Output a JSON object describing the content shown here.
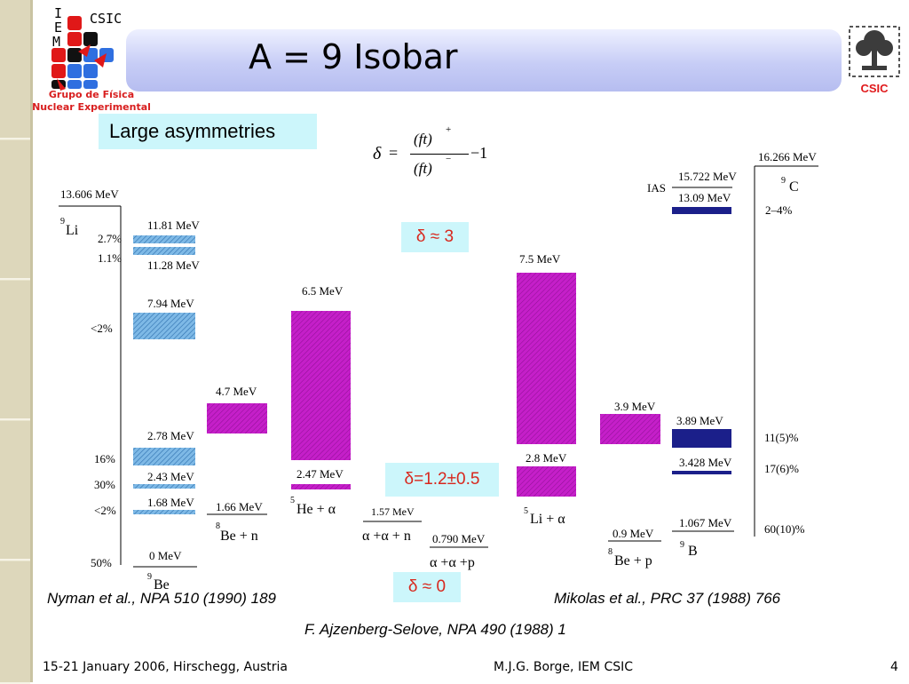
{
  "slide": {
    "title": "A = 9 Isobar",
    "page_number": "4",
    "footer_left": "15-21 January 2006, Hirschegg, Austria",
    "footer_center": "M.J.G. Borge, IEM CSIC"
  },
  "logos": {
    "left_letters": [
      "I",
      "E",
      "M"
    ],
    "left_csic": "CSIC",
    "group_line1": "Grupo de Física",
    "group_line2": "Nuclear Experimental",
    "right_csic": "CSIC"
  },
  "callouts": {
    "large_asymmetries": "Large asymmetries",
    "delta_3": "δ ≈ 3",
    "delta_12": "δ=1.2±0.5",
    "delta_0": "δ ≈ 0"
  },
  "formula": {
    "delta": "δ",
    "equals": "=",
    "numerator": "(ft)",
    "numerator_sup": "+",
    "denominator": "(ft)",
    "denominator_sup": "−",
    "minus_one": "−1"
  },
  "references": {
    "nyman": "Nyman et al., NPA 510 (1990) 189",
    "mikolas": "Mikolas et al., PRC 37 (1988) 766",
    "ajzenberg": "F. Ajzenberg-Selove, NPA 490 (1988) 1"
  },
  "levels": {
    "li9_qvalue": "13.606 MeV",
    "li9_element": "Li",
    "li9_mass": "9",
    "be9_11_81": "11.81 MeV",
    "be9_11_28": "11.28 MeV",
    "be9_7_94": "7.94 MeV",
    "be9_2_78": "2.78 MeV",
    "be9_2_43": "2.43 MeV",
    "be9_1_68": "1.68 MeV",
    "be9_0": "0 MeV",
    "be9_mass": "9",
    "be9_element": "Be",
    "pct_2_7": "2.7%",
    "pct_1_1": "1.1%",
    "pct_lt2_a": "<2%",
    "pct_16": "16%",
    "pct_30": "30%",
    "pct_lt2_b": "<2%",
    "pct_50": "50%",
    "be8n_4_7": "4.7 MeV",
    "be8n_1_66": "1.66 MeV",
    "be8n_mass": "8",
    "be8n_label": "Be + n",
    "he5_6_5": "6.5 MeV",
    "he5_2_47": "2.47 MeV",
    "he5_mass": "5",
    "he5_label": "He + α",
    "aan_1_57": "1.57 MeV",
    "aan_label": "α +α + n",
    "aap_0_790": "0.790 MeV",
    "aap_label": "α +α +p",
    "li5_7_5": "7.5 MeV",
    "li5_2_8": "2.8 MeV",
    "li5_mass": "5",
    "li5_label": "Li + α",
    "be8p_3_9": "3.9 MeV",
    "be8p_0_9": "0.9 MeV",
    "be8p_mass": "8",
    "be8p_label": "Be  + p",
    "b9_ias": "IAS",
    "b9_15_722": "15.722 MeV",
    "b9_13_09": "13.09 MeV",
    "b9_3_89": "3.89 MeV",
    "b9_3_428": "3.428 MeV",
    "b9_1_067": "1.067 MeV",
    "b9_mass": "9",
    "b9_element": "B",
    "c9_qvalue": "16.266 MeV",
    "c9_mass": "9",
    "c9_element": "C",
    "c9_pct_2_4": "2–4%",
    "c9_pct_11": "11(5)%",
    "c9_pct_17": "17(6)%",
    "c9_pct_60": "60(10)%"
  },
  "colors": {
    "magenta": "#c51fc9",
    "light_blue": "#5fa6dd",
    "navy": "#1b1f8a",
    "red_text": "#d8271d"
  }
}
